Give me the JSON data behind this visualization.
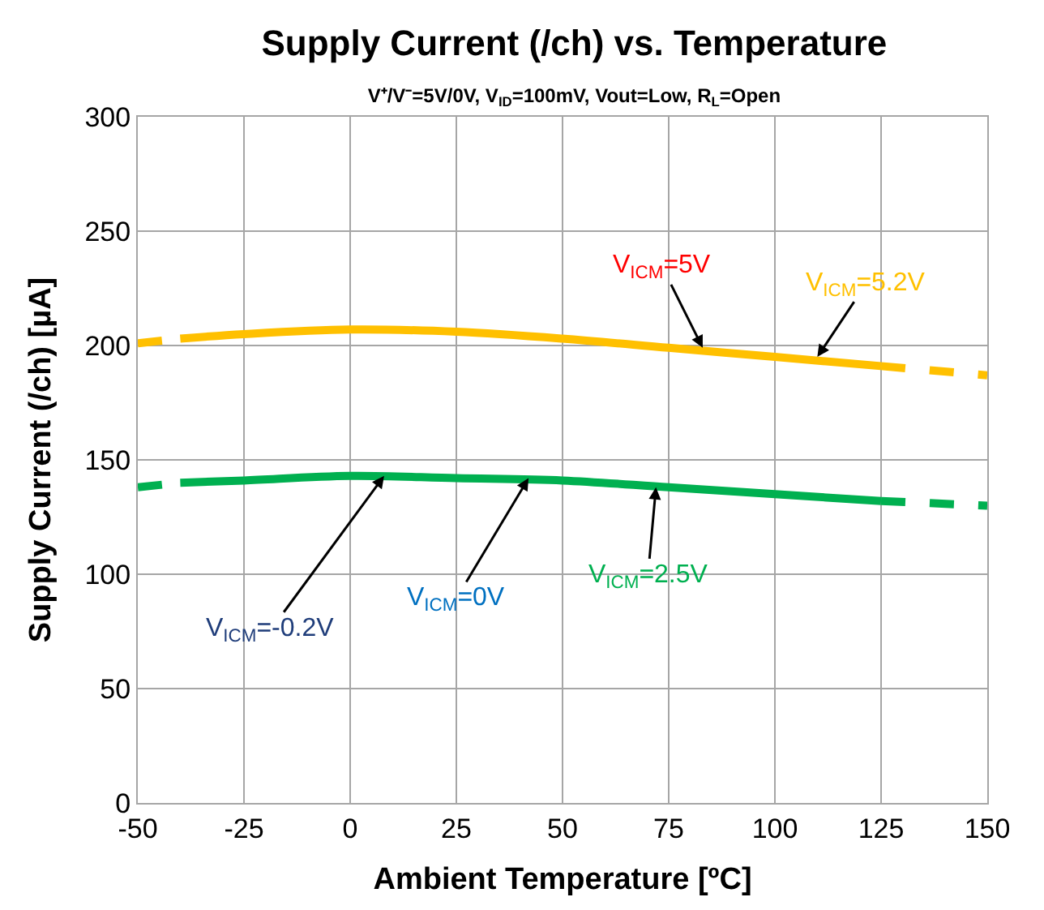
{
  "chart_data": {
    "type": "line",
    "title": "Supply Current (/ch) vs. Temperature",
    "subtitle": "V⁺/V⁻=5V/0V, V$_{ID}$=100mV, Vout=Low, R$_{L}$=Open",
    "xlabel": "Ambient Temperature [ºC]",
    "ylabel": "Supply Current (/ch) [µA]",
    "xlim": [
      -50,
      150
    ],
    "xticks": [
      -50,
      -25,
      0,
      25,
      50,
      75,
      100,
      125,
      150
    ],
    "ylim": [
      0,
      300
    ],
    "yticks": [
      0,
      50,
      100,
      150,
      200,
      250,
      300
    ],
    "grid": true,
    "marker": "none",
    "series": [
      {
        "color": "#00b050",
        "line_style": "dashed",
        "x": [
          -50,
          -40
        ],
        "values": [
          138,
          140
        ]
      },
      {
        "color": "#00b050",
        "line_style": "solid",
        "x": [
          -40,
          -25,
          0,
          25,
          50,
          75,
          100,
          125
        ],
        "values": [
          140,
          141,
          143,
          142,
          141,
          138,
          135,
          132
        ]
      },
      {
        "color": "#00b050",
        "line_style": "dashed",
        "x": [
          125,
          150
        ],
        "values": [
          132,
          130
        ]
      },
      {
        "color": "#ffc000",
        "line_style": "dashed",
        "x": [
          -50,
          -40
        ],
        "values": [
          201,
          203
        ]
      },
      {
        "color": "#ffc000",
        "line_style": "solid",
        "x": [
          -40,
          -25,
          0,
          25,
          50,
          75,
          100,
          125
        ],
        "values": [
          203,
          205,
          207,
          206,
          203,
          199,
          195,
          191
        ]
      },
      {
        "color": "#ffc000",
        "line_style": "dashed",
        "x": [
          125,
          150
        ],
        "values": [
          191,
          187
        ]
      }
    ],
    "annotations": [
      {
        "text": "V$_{ICM}$=5.2V",
        "x": 110,
        "y": 195
      },
      {
        "text": "V$_{ICM}$=5V",
        "x": 83,
        "y": 199
      },
      {
        "text": "V$_{ICM}$=2.5V",
        "x": 72,
        "y": 138
      },
      {
        "text": "V$_{ICM}$=0V",
        "x": 42,
        "y": 142
      },
      {
        "text": "V$_{ICM}$=-0.2V",
        "x": 8,
        "y": 143
      }
    ]
  }
}
